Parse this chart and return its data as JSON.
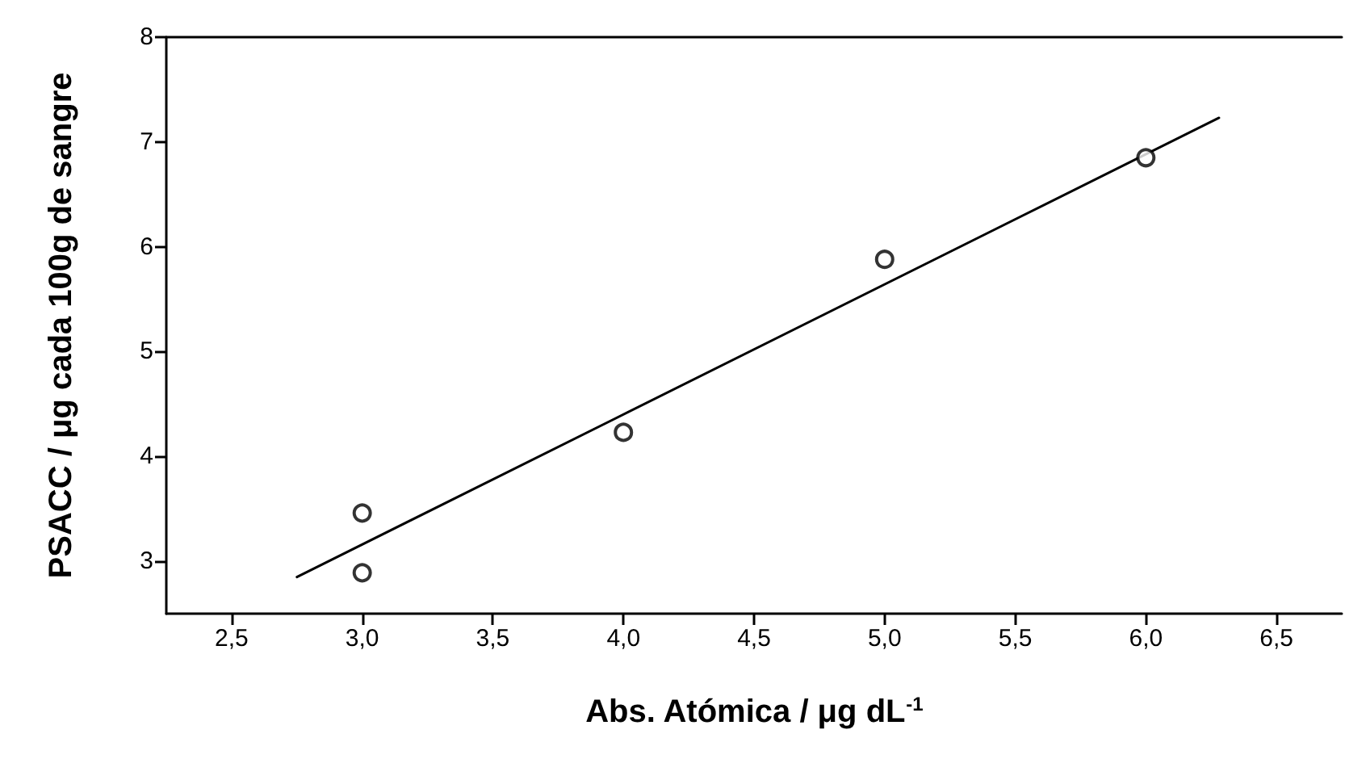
{
  "chart_data": {
    "type": "scatter",
    "xlabel": "Abs. Atómica / μg dL$^{-1}$",
    "ylabel": "PSACC / μg cada 100g de sangre",
    "series": [
      {
        "color": "#000000",
        "marker": "circle",
        "x": [
          3.0,
          3.0,
          4.0,
          5.0,
          6.0
        ],
        "values": [
          3.46,
          2.89,
          4.23,
          5.88,
          6.85
        ]
      },
      {
        "type": "line",
        "color": "#000000",
        "marker": "none",
        "line_style": "solid",
        "x": [
          2.75,
          6.28
        ],
        "values": [
          2.85,
          7.23
        ]
      }
    ],
    "xlim": [
      2.25,
      6.75
    ],
    "xticks": [
      {
        "value": 2.5,
        "label": "2,5"
      },
      {
        "value": 3.0,
        "label": "3,0"
      },
      {
        "value": 3.5,
        "label": "3,5"
      },
      {
        "value": 4.0,
        "label": "4,0"
      },
      {
        "value": 4.5,
        "label": "4,5"
      },
      {
        "value": 5.0,
        "label": "5,0"
      },
      {
        "value": 5.5,
        "label": "5,5"
      },
      {
        "value": 6.0,
        "label": "6,0"
      },
      {
        "value": 6.5,
        "label": "6,5"
      }
    ],
    "ylim": [
      2.5,
      8
    ],
    "yticks": [
      3,
      4,
      5,
      6,
      7,
      8
    ],
    "grid": false
  }
}
